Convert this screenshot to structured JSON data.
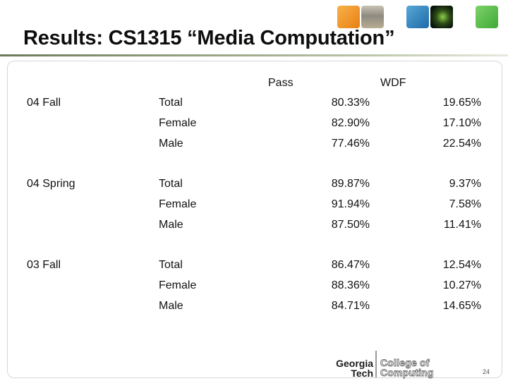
{
  "slide": {
    "title": "Results: CS1315 “Media Computation”",
    "page_number": "24"
  },
  "table": {
    "headers": [
      "Pass",
      "WDF"
    ],
    "groups": [
      {
        "term": "04 Fall",
        "rows": [
          {
            "label": "Total",
            "pass": "80.33%",
            "wdf": "19.65%"
          },
          {
            "label": "Female",
            "pass": "82.90%",
            "wdf": "17.10%"
          },
          {
            "label": "Male",
            "pass": "77.46%",
            "wdf": "22.54%"
          }
        ]
      },
      {
        "term": "04 Spring",
        "rows": [
          {
            "label": "Total",
            "pass": "89.87%",
            "wdf": "9.37%"
          },
          {
            "label": "Female",
            "pass": "91.94%",
            "wdf": "7.58%"
          },
          {
            "label": "Male",
            "pass": "87.50%",
            "wdf": "11.41%"
          }
        ]
      },
      {
        "term": "03 Fall",
        "rows": [
          {
            "label": "Total",
            "pass": "86.47%",
            "wdf": "12.54%"
          },
          {
            "label": "Female",
            "pass": "88.36%",
            "wdf": "10.27%"
          },
          {
            "label": "Male",
            "pass": "84.71%",
            "wdf": "14.65%"
          }
        ]
      }
    ]
  },
  "logo": {
    "line1": "Georgia",
    "line2": "Tech",
    "line3": "College of",
    "line4": "Computing"
  },
  "colors": {
    "title": "#0d0d0d",
    "rule": "#6d7a5a"
  }
}
